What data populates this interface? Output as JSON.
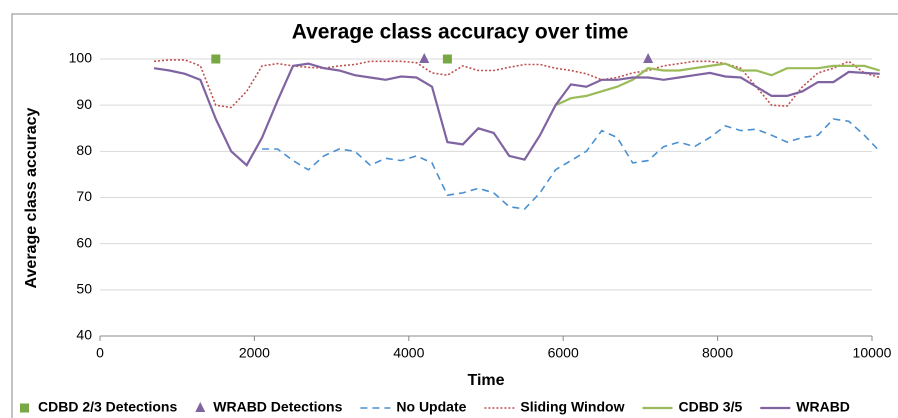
{
  "chart_data": {
    "type": "line",
    "title": "Average class accuracy over time",
    "x_label": "Time",
    "y_label": "Average class accuracy",
    "xlim": [
      0,
      10000
    ],
    "xticks": [
      0,
      2000,
      4000,
      6000,
      8000,
      10000
    ],
    "ylim": [
      40,
      100
    ],
    "yticks": [
      40,
      50,
      60,
      70,
      80,
      90,
      100
    ],
    "grid": true,
    "legend": "bottom",
    "x": [
      700,
      900,
      1100,
      1300,
      1500,
      1700,
      1900,
      2100,
      2300,
      2500,
      2700,
      2900,
      3100,
      3300,
      3500,
      3700,
      3900,
      4100,
      4300,
      4500,
      4700,
      4900,
      5100,
      5300,
      5500,
      5700,
      5900,
      6100,
      6300,
      6500,
      6700,
      6900,
      7100,
      7300,
      7500,
      7700,
      7900,
      8100,
      8300,
      8500,
      8700,
      8900,
      9100,
      9300,
      9500,
      9700,
      9900,
      10100
    ],
    "markers": [
      {
        "name": "CDBD 2/3 Detections",
        "color": "#77a844",
        "shape": "square",
        "x": [
          1500,
          4500
        ],
        "values": [
          100,
          100
        ]
      },
      {
        "name": "WRABD Detections",
        "color": "#8064a2",
        "shape": "triangle",
        "x": [
          4200,
          7100
        ],
        "values": [
          100,
          100
        ]
      }
    ],
    "series": [
      {
        "name": "No Update",
        "color": "#4a90d0",
        "dash": "dashed",
        "values": [
          null,
          null,
          null,
          null,
          null,
          null,
          null,
          80.5,
          80.5,
          78,
          76,
          79,
          80.5,
          80,
          77,
          78.5,
          78,
          79,
          77.5,
          70.5,
          71,
          72,
          71,
          68,
          67.5,
          71,
          76,
          78,
          80,
          84.5,
          83,
          77.5,
          78,
          81,
          82,
          81,
          83,
          85.5,
          84.5,
          84.8,
          83.5,
          82,
          83,
          83.5,
          87,
          86.5,
          83.5,
          80
        ]
      },
      {
        "name": "Sliding Window",
        "color": "#c0504d",
        "dash": "dotted",
        "values": [
          99.5,
          99.8,
          99.8,
          98.5,
          90,
          89.5,
          93,
          98.5,
          99,
          98.5,
          98.2,
          98,
          98.5,
          98.8,
          99.5,
          99.5,
          99.5,
          99.2,
          97,
          96.5,
          98.5,
          97.5,
          97.5,
          98.2,
          98.8,
          98.8,
          98,
          97.5,
          96.8,
          95.5,
          96,
          97,
          97.5,
          98.5,
          99,
          99.5,
          99.5,
          99,
          98,
          94,
          90,
          89.8,
          94,
          97,
          98,
          99.5,
          97,
          96
        ]
      },
      {
        "name": "CDBD 3/5",
        "color": "#9bbb59",
        "dash": "solid",
        "values": [
          null,
          null,
          null,
          null,
          null,
          null,
          null,
          null,
          null,
          null,
          null,
          null,
          null,
          null,
          null,
          null,
          null,
          null,
          null,
          null,
          null,
          null,
          null,
          null,
          null,
          null,
          90,
          91.5,
          92,
          93,
          94,
          95.5,
          98,
          97.5,
          97.5,
          98,
          98.5,
          99,
          97.5,
          97.5,
          96.5,
          98,
          98,
          98,
          98.5,
          98.5,
          98.5,
          97.5
        ]
      },
      {
        "name": "WRABD",
        "color": "#8064a2",
        "dash": "solid",
        "values": [
          98,
          97.5,
          96.8,
          95.5,
          87,
          80,
          77,
          83,
          91,
          98.5,
          99,
          98,
          97.5,
          96.5,
          96,
          95.5,
          96.2,
          96,
          94,
          82,
          81.5,
          85,
          84,
          79,
          78.2,
          83.5,
          90,
          94.5,
          94,
          95.5,
          95.5,
          96,
          96,
          95.5,
          96,
          96.5,
          97,
          96.2,
          96,
          94,
          92,
          92,
          93,
          95,
          95,
          97.2,
          97,
          96.8
        ]
      }
    ]
  }
}
